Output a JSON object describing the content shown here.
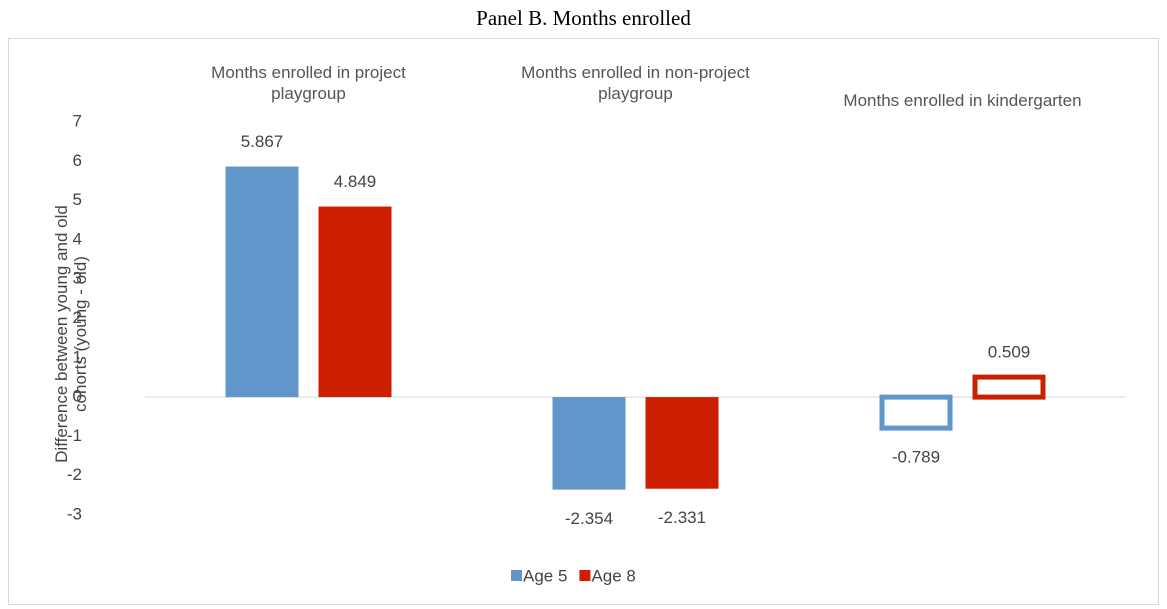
{
  "chart_data": {
    "type": "bar",
    "title": "Panel B. Months enrolled",
    "y_label": "Difference between young and old cohorts (young - old)",
    "categories": [
      "Months enrolled in project playgroup",
      "Months enrolled in non-project playgroup",
      "Months enrolled in kindergarten"
    ],
    "series": [
      {
        "name": "Age 5",
        "color": "#6196cb",
        "values": [
          5.867,
          -2.354,
          -0.789
        ]
      },
      {
        "name": "Age 8",
        "color": "#cc1f00",
        "values": [
          4.849,
          -2.331,
          0.509
        ]
      }
    ],
    "hollow": [
      false,
      false,
      true
    ],
    "ylim": [
      -3,
      7
    ],
    "yticks": [
      -3,
      -2,
      -1,
      0,
      1,
      2,
      3,
      4,
      5,
      6,
      7
    ],
    "legend": "bottom"
  }
}
